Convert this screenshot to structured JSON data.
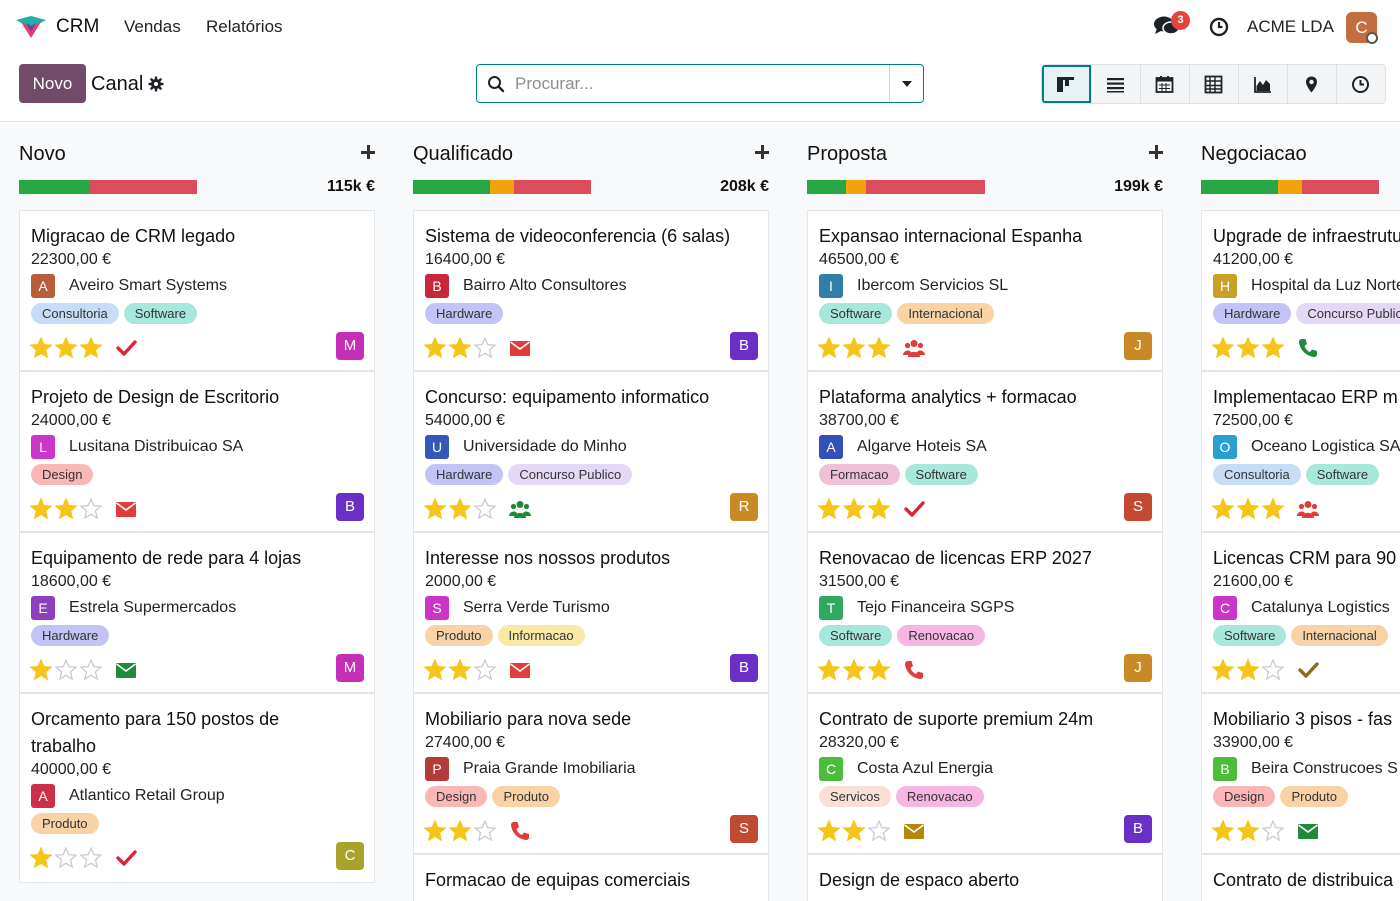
{
  "nav": {
    "app": "CRM",
    "menu": [
      "Vendas",
      "Relatórios"
    ],
    "chat_count": "3",
    "company": "ACME LDA",
    "user_initial": "C"
  },
  "control": {
    "new_button": "Novo",
    "breadcrumb": "Canal",
    "search_placeholder": "Procurar..."
  },
  "views": [
    "kanban-icon",
    "list-icon",
    "calendar-icon",
    "pivot-icon",
    "graph-icon",
    "map-icon",
    "activity-icon"
  ],
  "colors": {
    "brand": "#714b67",
    "accent": "#017e84",
    "progress_green": "#28a745",
    "progress_orange": "#f0a30a",
    "progress_red": "#dc4c5a"
  },
  "columns": [
    {
      "title": "Novo",
      "total": "115k €",
      "progress": [
        0.4,
        0.0,
        0.6
      ],
      "cards": [
        {
          "title": "Migracao de CRM legado",
          "amount": "22300,00 €",
          "customer": "Aveiro Smart Systems",
          "initial": "A",
          "cust_color": "#b85e3a",
          "tags": [
            {
              "label": "Consultoria",
              "color": "#c6dcf7"
            },
            {
              "label": "Software",
              "color": "#a8e8dc"
            }
          ],
          "stars": 3,
          "activity": "check",
          "activity_color": "#d9263a",
          "user": "M",
          "user_color": "#c42fb5"
        },
        {
          "title": "Projeto de Design de Escritorio",
          "amount": "24000,00 €",
          "customer": "Lusitana Distribuicao SA",
          "initial": "L",
          "cust_color": "#cb36c8",
          "tags": [
            {
              "label": "Design",
              "color": "#f9b8b6"
            }
          ],
          "stars": 2,
          "activity": "envelope",
          "activity_color": "#e03c3c",
          "user": "B",
          "user_color": "#6a2fc4"
        },
        {
          "title": "Equipamento de rede para 4 lojas",
          "amount": "18600,00 €",
          "customer": "Estrela Supermercados",
          "initial": "E",
          "cust_color": "#8d3fbd",
          "tags": [
            {
              "label": "Hardware",
              "color": "#c3c3f5"
            }
          ],
          "stars": 1,
          "activity": "envelope",
          "activity_color": "#1e8a3a",
          "user": "M",
          "user_color": "#c42fb5"
        },
        {
          "title": "Orcamento para 150 postos de trabalho",
          "amount": "40000,00 €",
          "customer": "Atlantico Retail Group",
          "initial": "A",
          "cust_color": "#cc3049",
          "tags": [
            {
              "label": "Produto",
              "color": "#f9d3a6"
            }
          ],
          "stars": 1,
          "activity": "check",
          "activity_color": "#d9263a",
          "user": "C",
          "user_color": "#a8a42a"
        }
      ]
    },
    {
      "title": "Qualificado",
      "total": "208k €",
      "progress": [
        0.43,
        0.14,
        0.43
      ],
      "cards": [
        {
          "title": "Sistema de videoconferencia (6 salas)",
          "amount": "16400,00 €",
          "customer": "Bairro Alto Consultores",
          "initial": "B",
          "cust_color": "#c9283b",
          "tags": [
            {
              "label": "Hardware",
              "color": "#c3c3f5"
            }
          ],
          "stars": 2,
          "activity": "envelope",
          "activity_color": "#e03c3c",
          "user": "B",
          "user_color": "#6a2fc4"
        },
        {
          "title": "Concurso: equipamento informatico",
          "amount": "54000,00 €",
          "customer": "Universidade do Minho",
          "initial": "U",
          "cust_color": "#3458b8",
          "tags": [
            {
              "label": "Hardware",
              "color": "#c3c3f5"
            },
            {
              "label": "Concurso Publico",
              "color": "#e4d8f7"
            }
          ],
          "stars": 2,
          "activity": "users",
          "activity_color": "#1e8a3a",
          "user": "R",
          "user_color": "#c98a25"
        },
        {
          "title": "Interesse nos nossos produtos",
          "amount": "2000,00 €",
          "customer": "Serra Verde Turismo",
          "initial": "S",
          "cust_color": "#cb36c8",
          "tags": [
            {
              "label": "Produto",
              "color": "#f9d3a6"
            },
            {
              "label": "Informacao",
              "color": "#f8eaa4"
            }
          ],
          "stars": 2,
          "activity": "envelope",
          "activity_color": "#e03c3c",
          "user": "B",
          "user_color": "#6a2fc4"
        },
        {
          "title": "Mobiliario para nova sede",
          "amount": "27400,00 €",
          "customer": "Praia Grande Imobiliaria",
          "initial": "P",
          "cust_color": "#b23b3b",
          "tags": [
            {
              "label": "Design",
              "color": "#f9b8b6"
            },
            {
              "label": "Produto",
              "color": "#f9d3a6"
            }
          ],
          "stars": 2,
          "activity": "phone",
          "activity_color": "#e03c3c",
          "user": "S",
          "user_color": "#c24a33"
        },
        {
          "title": "Formacao de equipas comerciais"
        }
      ]
    },
    {
      "title": "Proposta",
      "total": "199k €",
      "progress": [
        0.22,
        0.11,
        0.67
      ],
      "cards": [
        {
          "title": "Expansao internacional Espanha",
          "amount": "46500,00 €",
          "customer": "Ibercom Servicios SL",
          "initial": "I",
          "cust_color": "#2f7fa8",
          "tags": [
            {
              "label": "Software",
              "color": "#a8e8dc"
            },
            {
              "label": "Internacional",
              "color": "#f9d3a6"
            }
          ],
          "stars": 3,
          "activity": "users",
          "activity_color": "#e03c3c",
          "user": "J",
          "user_color": "#c98a25"
        },
        {
          "title": "Plataforma analytics + formacao",
          "amount": "38700,00 €",
          "customer": "Algarve Hoteis SA",
          "initial": "A",
          "cust_color": "#3450b8",
          "tags": [
            {
              "label": "Formacao",
              "color": "#f0bfd8"
            },
            {
              "label": "Software",
              "color": "#a8e8dc"
            }
          ],
          "stars": 3,
          "activity": "check",
          "activity_color": "#d9263a",
          "user": "S",
          "user_color": "#c24a33"
        },
        {
          "title": "Renovacao de licencas ERP 2027",
          "amount": "31500,00 €",
          "customer": "Tejo Financeira SGPS",
          "initial": "T",
          "cust_color": "#2fa860",
          "tags": [
            {
              "label": "Software",
              "color": "#a8e8dc"
            },
            {
              "label": "Renovacao",
              "color": "#f7b6e1"
            }
          ],
          "stars": 3,
          "activity": "phone",
          "activity_color": "#e03c3c",
          "user": "J",
          "user_color": "#c98a25"
        },
        {
          "title": "Contrato de suporte premium 24m",
          "amount": "28320,00 €",
          "customer": "Costa Azul Energia",
          "initial": "C",
          "cust_color": "#4bbd3a",
          "tags": [
            {
              "label": "Servicos",
              "color": "#f9e0d6"
            },
            {
              "label": "Renovacao",
              "color": "#f7b6e1"
            }
          ],
          "stars": 2,
          "activity": "envelope",
          "activity_color": "#b8860b",
          "user": "B",
          "user_color": "#6a2fc4"
        },
        {
          "title": "Design de espaco aberto"
        }
      ]
    },
    {
      "title": "Negociacao",
      "total": "",
      "progress": [
        0.43,
        0.14,
        0.43
      ],
      "cards": [
        {
          "title": "Upgrade de infraestrutura",
          "amount": "41200,00 €",
          "customer": "Hospital da Luz Norte",
          "initial": "H",
          "cust_color": "#c9a02a",
          "tags": [
            {
              "label": "Hardware",
              "color": "#c3c3f5"
            },
            {
              "label": "Concurso Publico",
              "color": "#e4d8f7"
            }
          ],
          "stars": 3,
          "activity": "phone",
          "activity_color": "#1e8a3a",
          "user": "",
          "user_color": "#ffffff"
        },
        {
          "title": "Implementacao ERP m",
          "amount": "72500,00 €",
          "customer": "Oceano Logistica SA",
          "initial": "O",
          "cust_color": "#2a9fd1",
          "tags": [
            {
              "label": "Consultoria",
              "color": "#c6dcf7"
            },
            {
              "label": "Software",
              "color": "#a8e8dc"
            }
          ],
          "stars": 3,
          "activity": "users",
          "activity_color": "#e03c3c",
          "user": "",
          "user_color": "#ffffff"
        },
        {
          "title": "Licencas CRM para 90",
          "amount": "21600,00 €",
          "customer": "Catalunya Logistics",
          "initial": "C",
          "cust_color": "#cb36c8",
          "tags": [
            {
              "label": "Software",
              "color": "#a8e8dc"
            },
            {
              "label": "Internacional",
              "color": "#f9d3a6"
            }
          ],
          "stars": 2,
          "activity": "check",
          "activity_color": "#8a6d1e",
          "user": "",
          "user_color": "#ffffff"
        },
        {
          "title": "Mobiliario 3 pisos - fas",
          "amount": "33900,00 €",
          "customer": "Beira Construcoes S",
          "initial": "B",
          "cust_color": "#4bbd3a",
          "tags": [
            {
              "label": "Design",
              "color": "#f9b8b6"
            },
            {
              "label": "Produto",
              "color": "#f9d3a6"
            }
          ],
          "stars": 2,
          "activity": "envelope",
          "activity_color": "#1e8a3a",
          "user": "",
          "user_color": "#ffffff"
        },
        {
          "title": "Contrato de distribuica"
        }
      ]
    }
  ]
}
